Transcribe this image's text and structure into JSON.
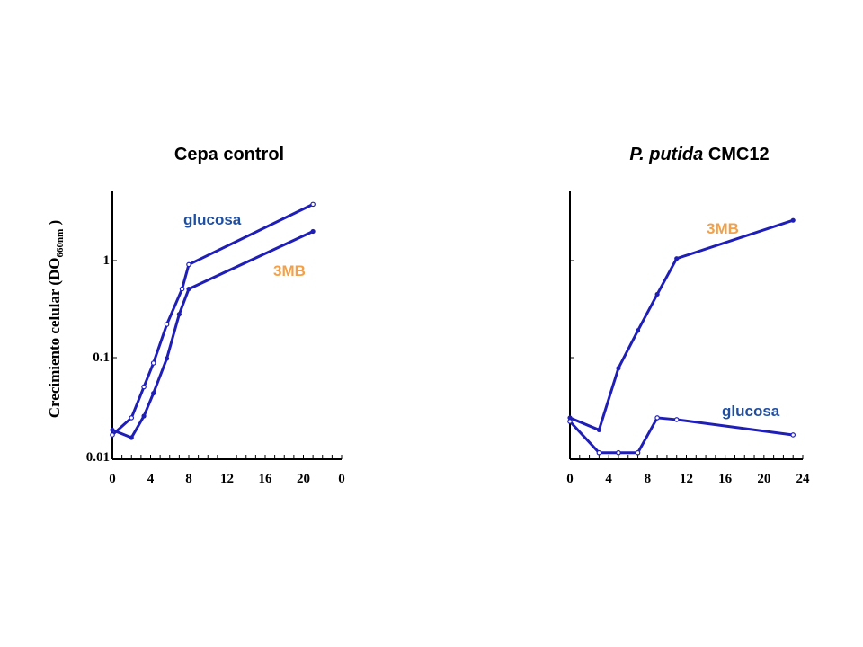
{
  "colors": {
    "line": "#1f1fb8",
    "glucosa_label": "#1f4fa3",
    "mb_label": "#f2a14a",
    "axis": "#000000"
  },
  "ylabel": {
    "main": "Crecimiento celular (DO",
    "sub": "660nm",
    "close": " )"
  },
  "chart_data": [
    {
      "type": "line",
      "title": "Cepa control",
      "title_italic": "",
      "x_ticks": [
        "0",
        "4",
        "8",
        "12",
        "16",
        "20",
        "0"
      ],
      "y_ticks": [
        "0.01",
        "0.1",
        "1"
      ],
      "y_scale": "log",
      "xlim": [
        0,
        24
      ],
      "ylim": [
        0.012,
        4
      ],
      "series": [
        {
          "name": "glucosa",
          "marker": "open",
          "x": [
            0,
            2,
            3.3,
            4.3,
            5.7,
            7.3,
            8,
            21
          ],
          "y": [
            0.016,
            0.024,
            0.05,
            0.088,
            0.22,
            0.51,
            0.91,
            3.8
          ]
        },
        {
          "name": "3MB",
          "marker": "filled",
          "x": [
            0,
            2,
            3.3,
            4.3,
            5.7,
            7,
            8,
            21
          ],
          "y": [
            0.018,
            0.015,
            0.025,
            0.043,
            0.098,
            0.28,
            0.51,
            2.0
          ]
        }
      ]
    },
    {
      "type": "line",
      "title": "CMC12",
      "title_italic": "P. putida",
      "x_ticks": [
        "0",
        "4",
        "8",
        "12",
        "16",
        "20",
        "24"
      ],
      "y_ticks": [],
      "y_scale": "log",
      "xlim": [
        0,
        24
      ],
      "ylim": [
        0.012,
        4
      ],
      "series": [
        {
          "name": "3MB",
          "marker": "filled",
          "x": [
            0,
            3,
            5,
            7,
            9,
            11,
            23
          ],
          "y": [
            0.024,
            0.018,
            0.078,
            0.19,
            0.45,
            1.05,
            2.6
          ]
        },
        {
          "name": "glucosa",
          "marker": "open",
          "x": [
            0,
            3,
            5,
            7,
            9,
            11,
            23
          ],
          "y": [
            0.022,
            0.0105,
            0.0105,
            0.0105,
            0.024,
            0.023,
            0.016
          ]
        }
      ]
    }
  ]
}
